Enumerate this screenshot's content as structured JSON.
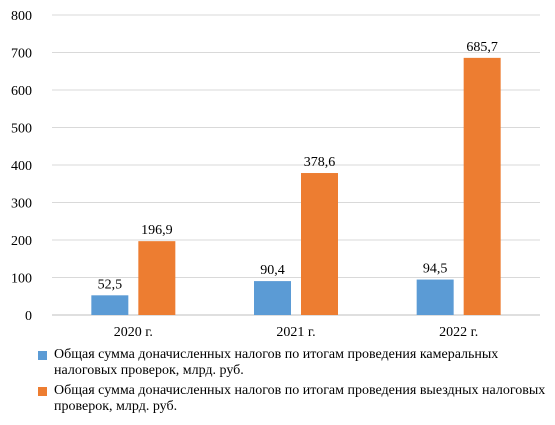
{
  "chart_data": {
    "type": "bar",
    "categories": [
      "2020 г.",
      "2021 г.",
      "2022 г."
    ],
    "series": [
      {
        "name": "Общая сумма доначисленных налогов по итогам проведения камеральных налоговых проверок, млрд. руб.",
        "values": [
          52.5,
          90.4,
          94.5
        ],
        "labels": [
          "52,5",
          "90,4",
          "94,5"
        ],
        "color": "#5B9BD5"
      },
      {
        "name": "Общая сумма доначисленных налогов по итогам проведения выездных налоговых проверок, млрд. руб.",
        "values": [
          196.9,
          378.6,
          685.7
        ],
        "labels": [
          "196,9",
          "378,6",
          "685,7"
        ],
        "color": "#ED7D31"
      }
    ],
    "ylim": [
      0,
      800
    ],
    "yticks": [
      "0",
      "100",
      "200",
      "300",
      "400",
      "500",
      "600",
      "700",
      "800"
    ],
    "grid": true,
    "legend_position": "bottom"
  }
}
